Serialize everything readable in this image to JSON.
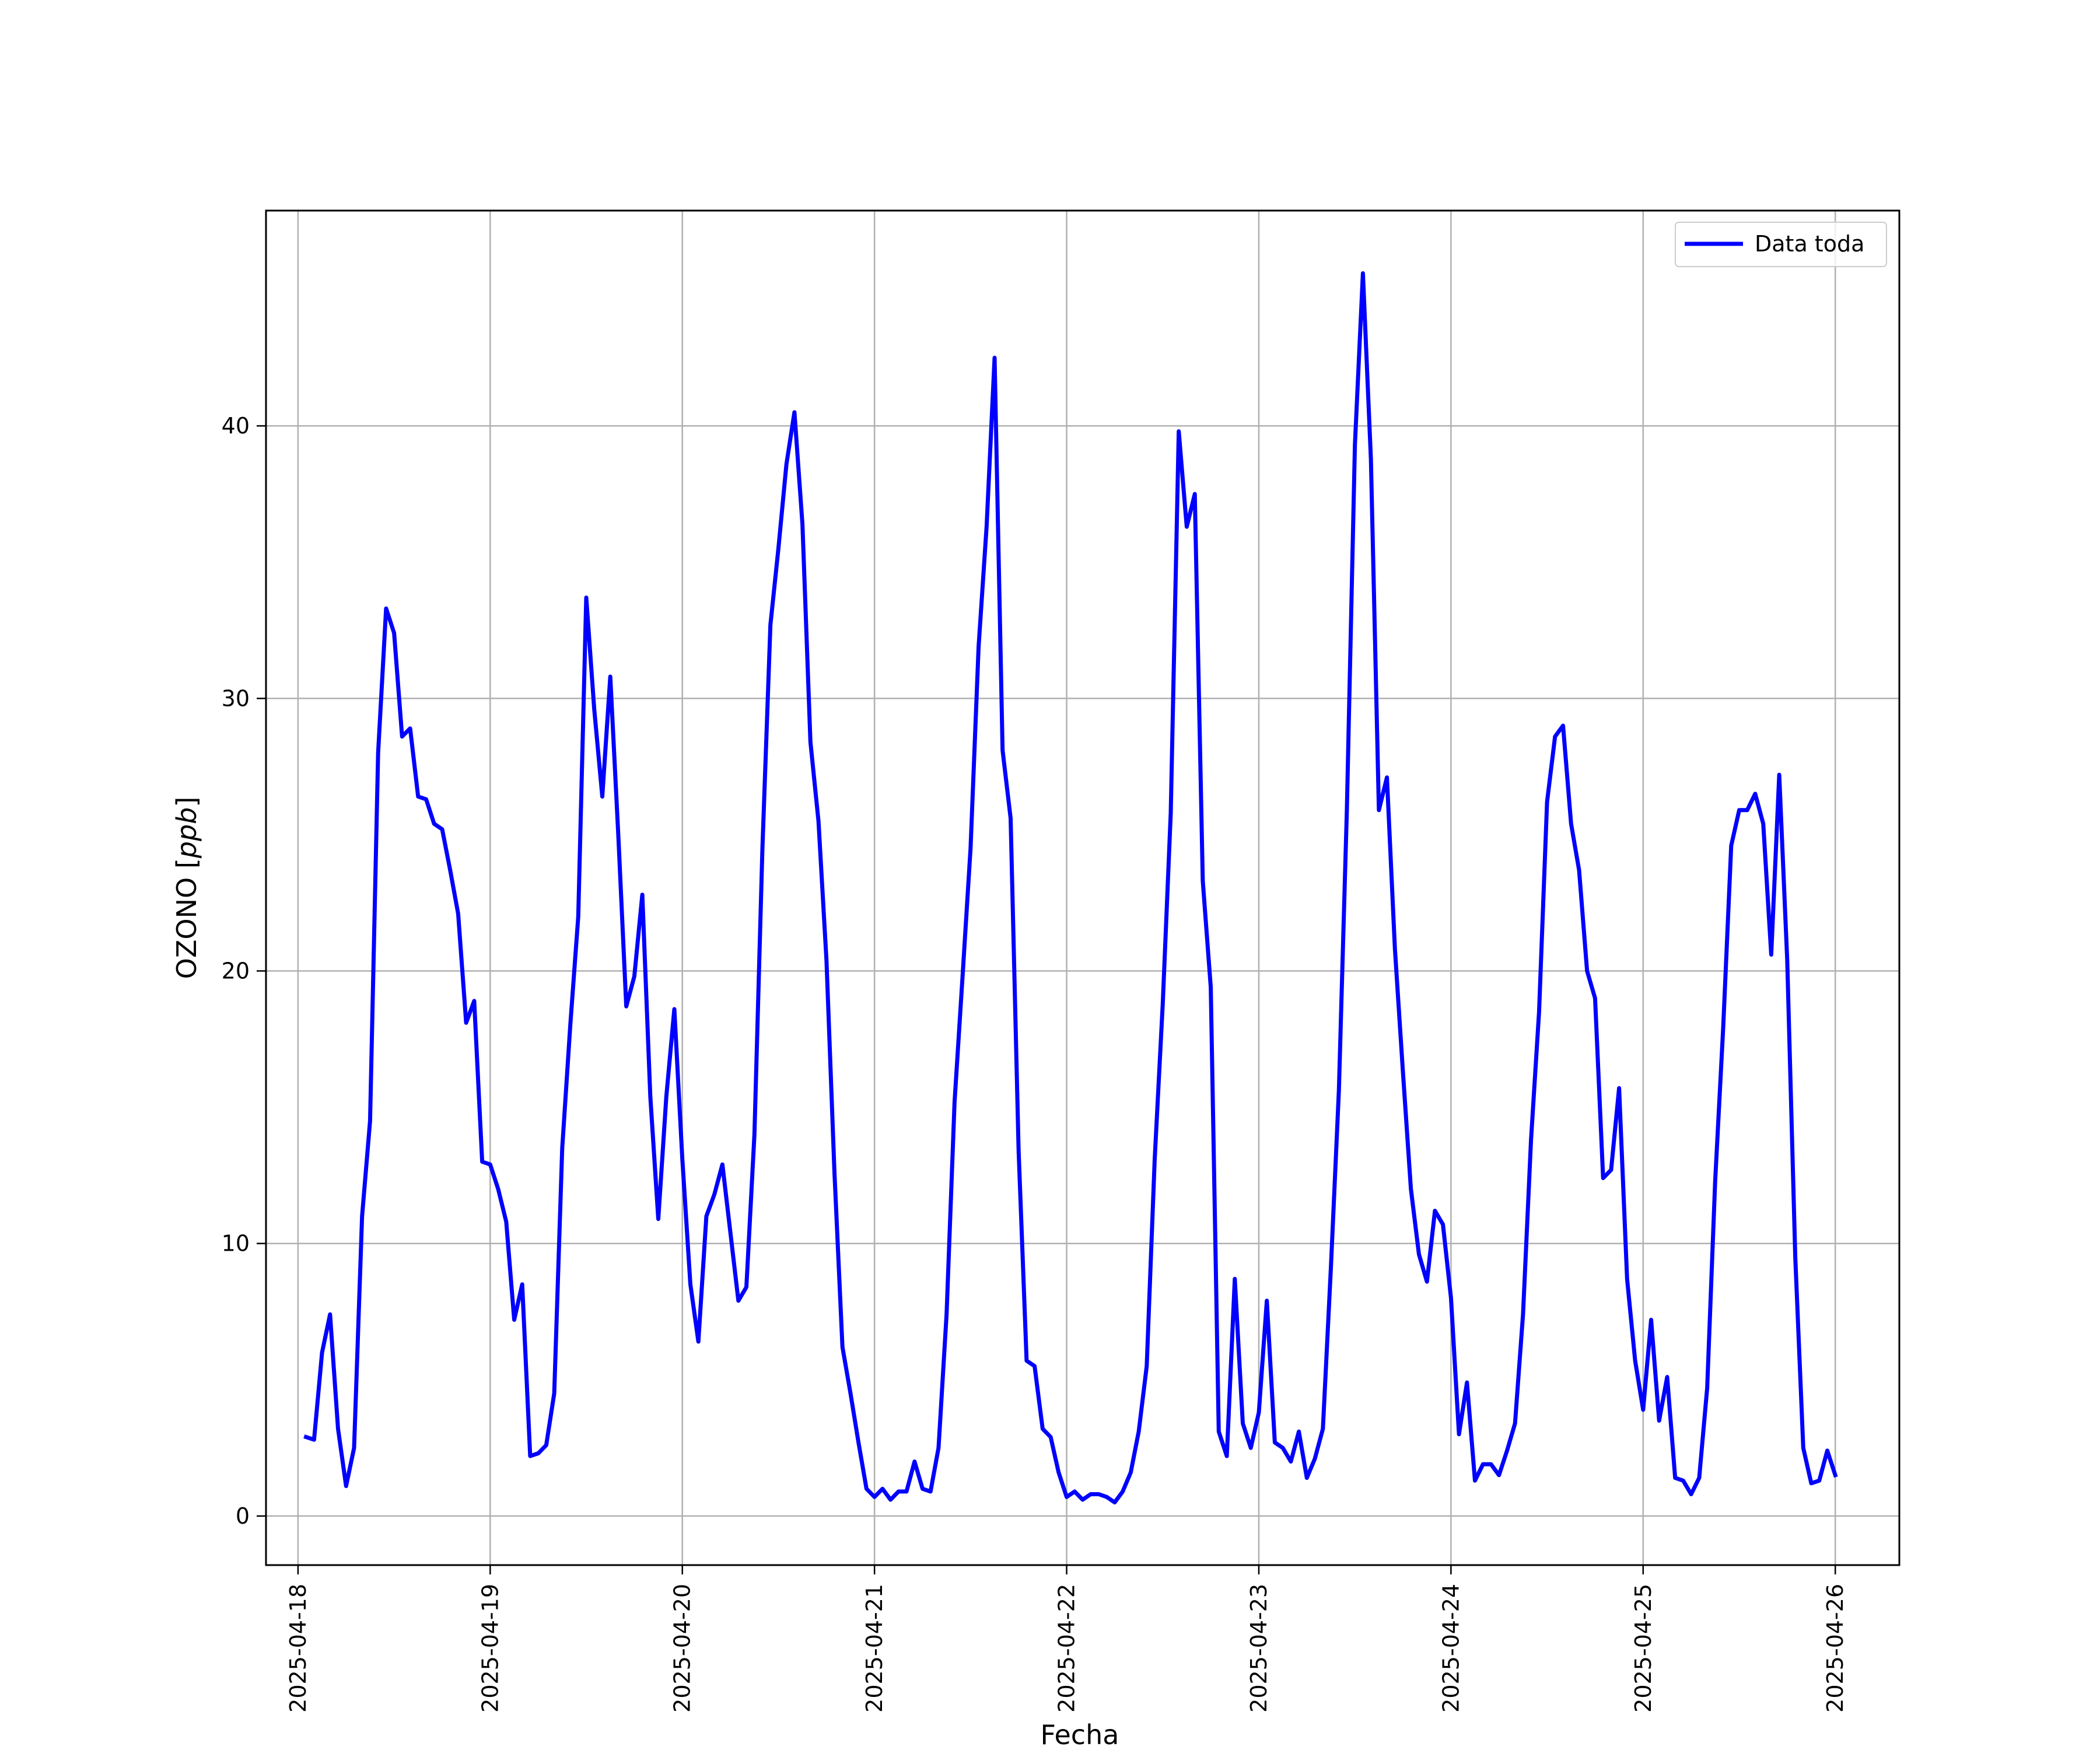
{
  "chart_data": {
    "type": "line",
    "xlabel": "Fecha",
    "ylabel": "OZONO [ppb]",
    "ylabel_parts": {
      "prefix": "OZONO [",
      "unit": "ppb",
      "suffix": "]"
    },
    "xlim": [
      "2025-04-17T20:00",
      "2025-04-26T08:00"
    ],
    "ylim": [
      -1.8,
      47.9
    ],
    "x_ticks": [
      "2025-04-18",
      "2025-04-19",
      "2025-04-20",
      "2025-04-21",
      "2025-04-22",
      "2025-04-23",
      "2025-04-24",
      "2025-04-25",
      "2025-04-26"
    ],
    "y_ticks": [
      0,
      10,
      20,
      30,
      40
    ],
    "grid": true,
    "legend_position": "upper right",
    "series": [
      {
        "name": "Data toda",
        "color": "#0000ff",
        "start": "2025-04-18T01:00",
        "interval_hours": 1,
        "values": [
          2.9,
          2.8,
          6.0,
          7.4,
          3.2,
          1.1,
          2.5,
          11.0,
          14.5,
          28.0,
          33.3,
          32.4,
          28.6,
          28.9,
          26.4,
          26.3,
          25.4,
          25.2,
          23.7,
          22.1,
          18.1,
          18.9,
          13.0,
          12.9,
          12.0,
          10.8,
          7.2,
          8.5,
          2.2,
          2.3,
          2.6,
          4.5,
          13.5,
          18.0,
          22.0,
          33.7,
          29.6,
          26.4,
          30.8,
          25.0,
          18.7,
          19.8,
          22.8,
          15.4,
          10.9,
          15.4,
          18.6,
          13.1,
          8.5,
          6.4,
          11.0,
          11.8,
          12.9,
          10.4,
          7.9,
          8.4,
          14.0,
          24.5,
          32.7,
          35.5,
          38.6,
          40.5,
          36.4,
          28.4,
          25.5,
          20.4,
          12.6,
          6.2,
          4.5,
          2.7,
          1.0,
          0.7,
          1.0,
          0.6,
          0.9,
          0.9,
          2.0,
          1.0,
          0.9,
          2.5,
          7.4,
          15.2,
          19.8,
          24.5,
          31.9,
          36.3,
          42.5,
          28.1,
          25.6,
          13.4,
          5.7,
          5.5,
          3.2,
          2.9,
          1.6,
          0.7,
          0.9,
          0.6,
          0.8,
          0.8,
          0.7,
          0.5,
          0.9,
          1.6,
          3.1,
          5.5,
          13.1,
          18.8,
          25.8,
          39.8,
          36.3,
          37.5,
          23.3,
          19.4,
          3.1,
          2.2,
          8.7,
          3.4,
          2.5,
          3.8,
          7.9,
          2.7,
          2.5,
          2.0,
          3.1,
          1.4,
          2.1,
          3.2,
          9.1,
          15.6,
          25.9,
          39.3,
          45.6,
          38.8,
          25.9,
          27.1,
          20.8,
          16.3,
          12.0,
          9.6,
          8.6,
          11.2,
          10.7,
          8.0,
          3.0,
          4.9,
          1.3,
          1.9,
          1.9,
          1.5,
          2.4,
          3.4,
          7.4,
          13.8,
          18.5,
          26.2,
          28.6,
          29.0,
          25.4,
          23.7,
          20.0,
          19.0,
          12.4,
          12.7,
          15.7,
          8.7,
          5.7,
          3.9,
          7.2,
          3.5,
          5.1,
          1.4,
          1.3,
          0.8,
          1.4,
          4.7,
          12.3,
          17.9,
          24.6,
          25.9,
          25.9,
          26.5,
          25.4,
          20.6,
          27.2,
          20.4,
          9.5,
          2.5,
          1.2,
          1.3,
          2.4,
          1.5
        ]
      }
    ]
  }
}
